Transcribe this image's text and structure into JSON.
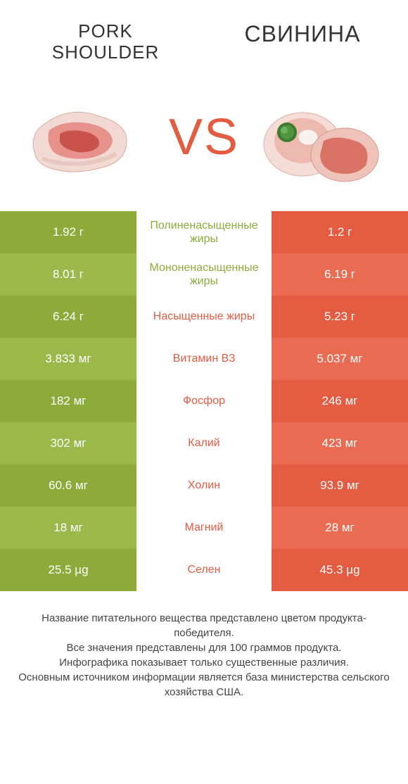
{
  "titles": {
    "left": "Pork\nshoulder",
    "right": "Свинина",
    "vs": "VS"
  },
  "colors": {
    "left": {
      "a": "#8dab3b",
      "b": "#9bb84a"
    },
    "right": {
      "a": "#e35b40",
      "b": "#e86b52"
    },
    "text_left": "#8dab3b",
    "text_right": "#e35b40",
    "page_bg": "#ffffff"
  },
  "rows": [
    {
      "left": "1.92 г",
      "mid": "Полиненасыщенные жиры",
      "right": "1.2 г",
      "winner": "left"
    },
    {
      "left": "8.01 г",
      "mid": "Мононенасыщенные жиры",
      "right": "6.19 г",
      "winner": "left"
    },
    {
      "left": "6.24 г",
      "mid": "Насыщенные жиры",
      "right": "5.23 г",
      "winner": "right"
    },
    {
      "left": "3.833 мг",
      "mid": "Витамин B3",
      "right": "5.037 мг",
      "winner": "right"
    },
    {
      "left": "182 мг",
      "mid": "Фосфор",
      "right": "246 мг",
      "winner": "right"
    },
    {
      "left": "302 мг",
      "mid": "Калий",
      "right": "423 мг",
      "winner": "right"
    },
    {
      "left": "60.6 мг",
      "mid": "Холин",
      "right": "93.9 мг",
      "winner": "right"
    },
    {
      "left": "18 мг",
      "mid": "Магний",
      "right": "28 мг",
      "winner": "right"
    },
    {
      "left": "25.5 µg",
      "mid": "Селен",
      "right": "45.3 µg",
      "winner": "right"
    }
  ],
  "footer": [
    "Название питательного вещества представлено цветом продукта-победителя.",
    "Все значения представлены для 100 граммов продукта.",
    "Инфографика показывает только существенные различия.",
    "Основным источником информации является база министерства сельского хозяйства США."
  ]
}
